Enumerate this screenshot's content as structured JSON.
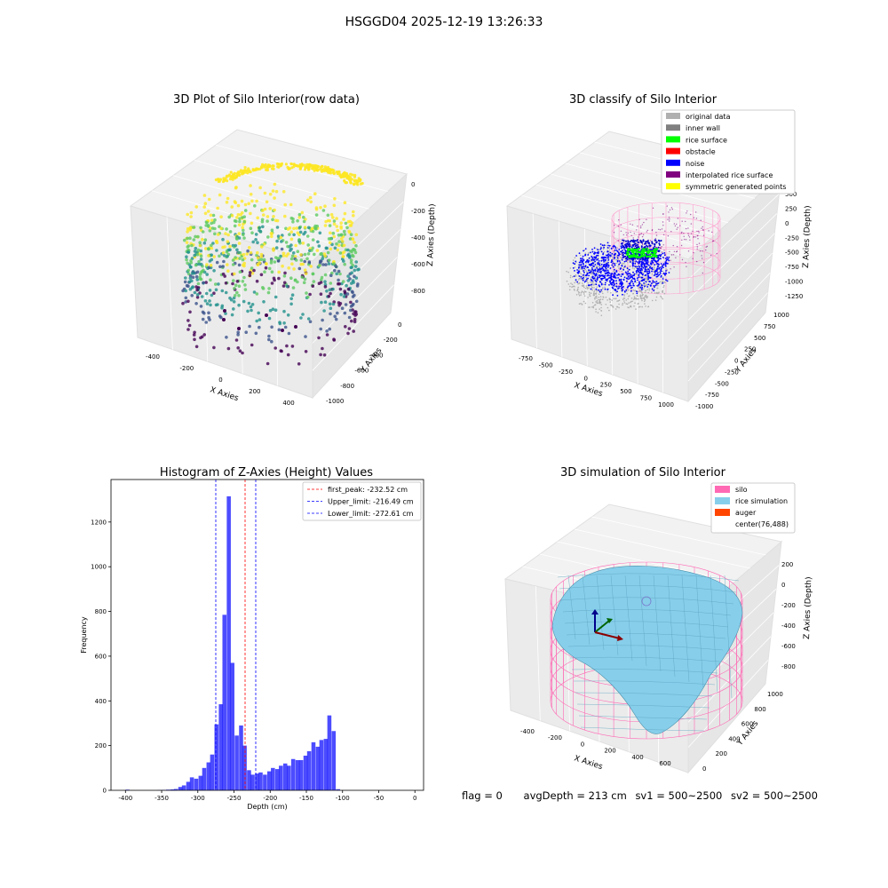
{
  "figure": {
    "suptitle": "HSGGD04 2025-12-19 13:26:33",
    "status": {
      "flag": "flag = 0",
      "avg_depth": "avgDepth = 213 cm",
      "sv1": "sv1 = 500~2500",
      "sv2": "sv2 = 500~2500"
    }
  },
  "chart_data": [
    {
      "type": "scatter",
      "projection": "3d",
      "title": "3D Plot of Silo Interior(row data)",
      "xlabel": "X Axies",
      "ylabel": "Y Axies",
      "zlabel": "Z Axies (Depth)",
      "xticks": [
        "-400",
        "-200",
        "0",
        "200",
        "400"
      ],
      "yticks": [
        "0",
        "-200",
        "-400",
        "-600",
        "-800",
        "-1000"
      ],
      "zticks": [
        "0",
        "-200",
        "-400",
        "-600",
        "-800"
      ],
      "xlim": [
        -480,
        480
      ],
      "ylim": [
        -1050,
        50
      ],
      "zlim": [
        -950,
        50
      ],
      "colormap": [
        "#440154",
        "#3b528b",
        "#21918c",
        "#5ec962",
        "#fde725"
      ],
      "grid": true
    },
    {
      "type": "scatter",
      "projection": "3d",
      "title": "3D classify of Silo Interior",
      "xlabel": "X Axies",
      "ylabel": "Y Axies",
      "zlabel": "Z Axies (Depth)",
      "xticks": [
        "-750",
        "-500",
        "-250",
        "0",
        "250",
        "500",
        "750",
        "1000"
      ],
      "yticks": [
        "1000",
        "750",
        "500",
        "250",
        "0",
        "-250",
        "-500",
        "-750",
        "-1000"
      ],
      "zticks": [
        "500",
        "250",
        "0",
        "-250",
        "-500",
        "-750",
        "-1000",
        "-1250"
      ],
      "legend_position": "top-right",
      "legend": [
        {
          "name": "original data",
          "color": "#b0b0b0"
        },
        {
          "name": "inner wall",
          "color": "#808080"
        },
        {
          "name": "rice surface",
          "color": "#00ff00"
        },
        {
          "name": "obstacle",
          "color": "#ff0000"
        },
        {
          "name": "noise",
          "color": "#0000ff"
        },
        {
          "name": "interpolated rice surface",
          "color": "#800080"
        },
        {
          "name": "symmetric generated points",
          "color": "#ffff00"
        }
      ],
      "grid": true
    },
    {
      "type": "bar",
      "title": "Histogram of Z-Axies (Height) Values",
      "xlabel": "Depth (cm)",
      "ylabel": "Frequency",
      "xlim": [
        -420,
        12
      ],
      "ylim": [
        0,
        1390
      ],
      "xticks": [
        -400,
        -350,
        -300,
        -250,
        -200,
        -150,
        -100,
        -50,
        0
      ],
      "yticks": [
        0,
        200,
        400,
        600,
        800,
        1000,
        1200
      ],
      "bar_color": "#0000ff",
      "bin_width": 5.6,
      "bins": [
        {
          "x": -400,
          "count": 3
        },
        {
          "x": -356,
          "count": 1
        },
        {
          "x": -350,
          "count": 2
        },
        {
          "x": -344,
          "count": 3
        },
        {
          "x": -338,
          "count": 4
        },
        {
          "x": -333,
          "count": 6
        },
        {
          "x": -327,
          "count": 15
        },
        {
          "x": -322,
          "count": 22
        },
        {
          "x": -316,
          "count": 38
        },
        {
          "x": -311,
          "count": 58
        },
        {
          "x": -305,
          "count": 52
        },
        {
          "x": -299,
          "count": 65
        },
        {
          "x": -294,
          "count": 100
        },
        {
          "x": -288,
          "count": 125
        },
        {
          "x": -283,
          "count": 160
        },
        {
          "x": -277,
          "count": 295
        },
        {
          "x": -271,
          "count": 385
        },
        {
          "x": -266,
          "count": 785
        },
        {
          "x": -260,
          "count": 1315
        },
        {
          "x": -255,
          "count": 570
        },
        {
          "x": -249,
          "count": 245
        },
        {
          "x": -243,
          "count": 290
        },
        {
          "x": -238,
          "count": 200
        },
        {
          "x": -232,
          "count": 90
        },
        {
          "x": -227,
          "count": 70
        },
        {
          "x": -221,
          "count": 75
        },
        {
          "x": -216,
          "count": 80
        },
        {
          "x": -210,
          "count": 70
        },
        {
          "x": -204,
          "count": 85
        },
        {
          "x": -199,
          "count": 100
        },
        {
          "x": -193,
          "count": 95
        },
        {
          "x": -188,
          "count": 110
        },
        {
          "x": -182,
          "count": 120
        },
        {
          "x": -177,
          "count": 110
        },
        {
          "x": -171,
          "count": 140
        },
        {
          "x": -165,
          "count": 135
        },
        {
          "x": -160,
          "count": 135
        },
        {
          "x": -154,
          "count": 155
        },
        {
          "x": -149,
          "count": 175
        },
        {
          "x": -143,
          "count": 215
        },
        {
          "x": -137,
          "count": 195
        },
        {
          "x": -132,
          "count": 225
        },
        {
          "x": -126,
          "count": 230
        },
        {
          "x": -121,
          "count": 335
        },
        {
          "x": -115,
          "count": 265
        },
        {
          "x": -109,
          "count": 5
        }
      ],
      "vlines": [
        {
          "label": "first_peak: -232.52 cm",
          "x": -232.52,
          "color": "#ff0000"
        },
        {
          "label": "Upper_limit: -216.49 cm",
          "x": -216.49,
          "color": "#0000ff"
        },
        {
          "label": "Lower_limit: -272.61 cm",
          "x": -272.61,
          "color": "#0000ff"
        }
      ],
      "legend_position": "top-right"
    },
    {
      "type": "surface",
      "projection": "3d",
      "title": "3D simulation of Silo Interior",
      "xlabel": "X Axies",
      "ylabel": "Y Axies",
      "zlabel": "Z Axies (Depth)",
      "xticks": [
        "-400",
        "-200",
        "0",
        "200",
        "400",
        "600"
      ],
      "yticks": [
        "0",
        "200",
        "400",
        "600",
        "800",
        "1000"
      ],
      "zticks": [
        "200",
        "0",
        "-200",
        "-400",
        "-600",
        "-800"
      ],
      "legend_position": "top-right",
      "legend": [
        {
          "name": "silo",
          "color": "#ff69b4"
        },
        {
          "name": "rice simulation",
          "color": "#87ceeb"
        },
        {
          "name": "auger",
          "color": "#ff4500"
        },
        {
          "name": "center(76,488)",
          "color": ""
        }
      ],
      "grid": true
    }
  ]
}
